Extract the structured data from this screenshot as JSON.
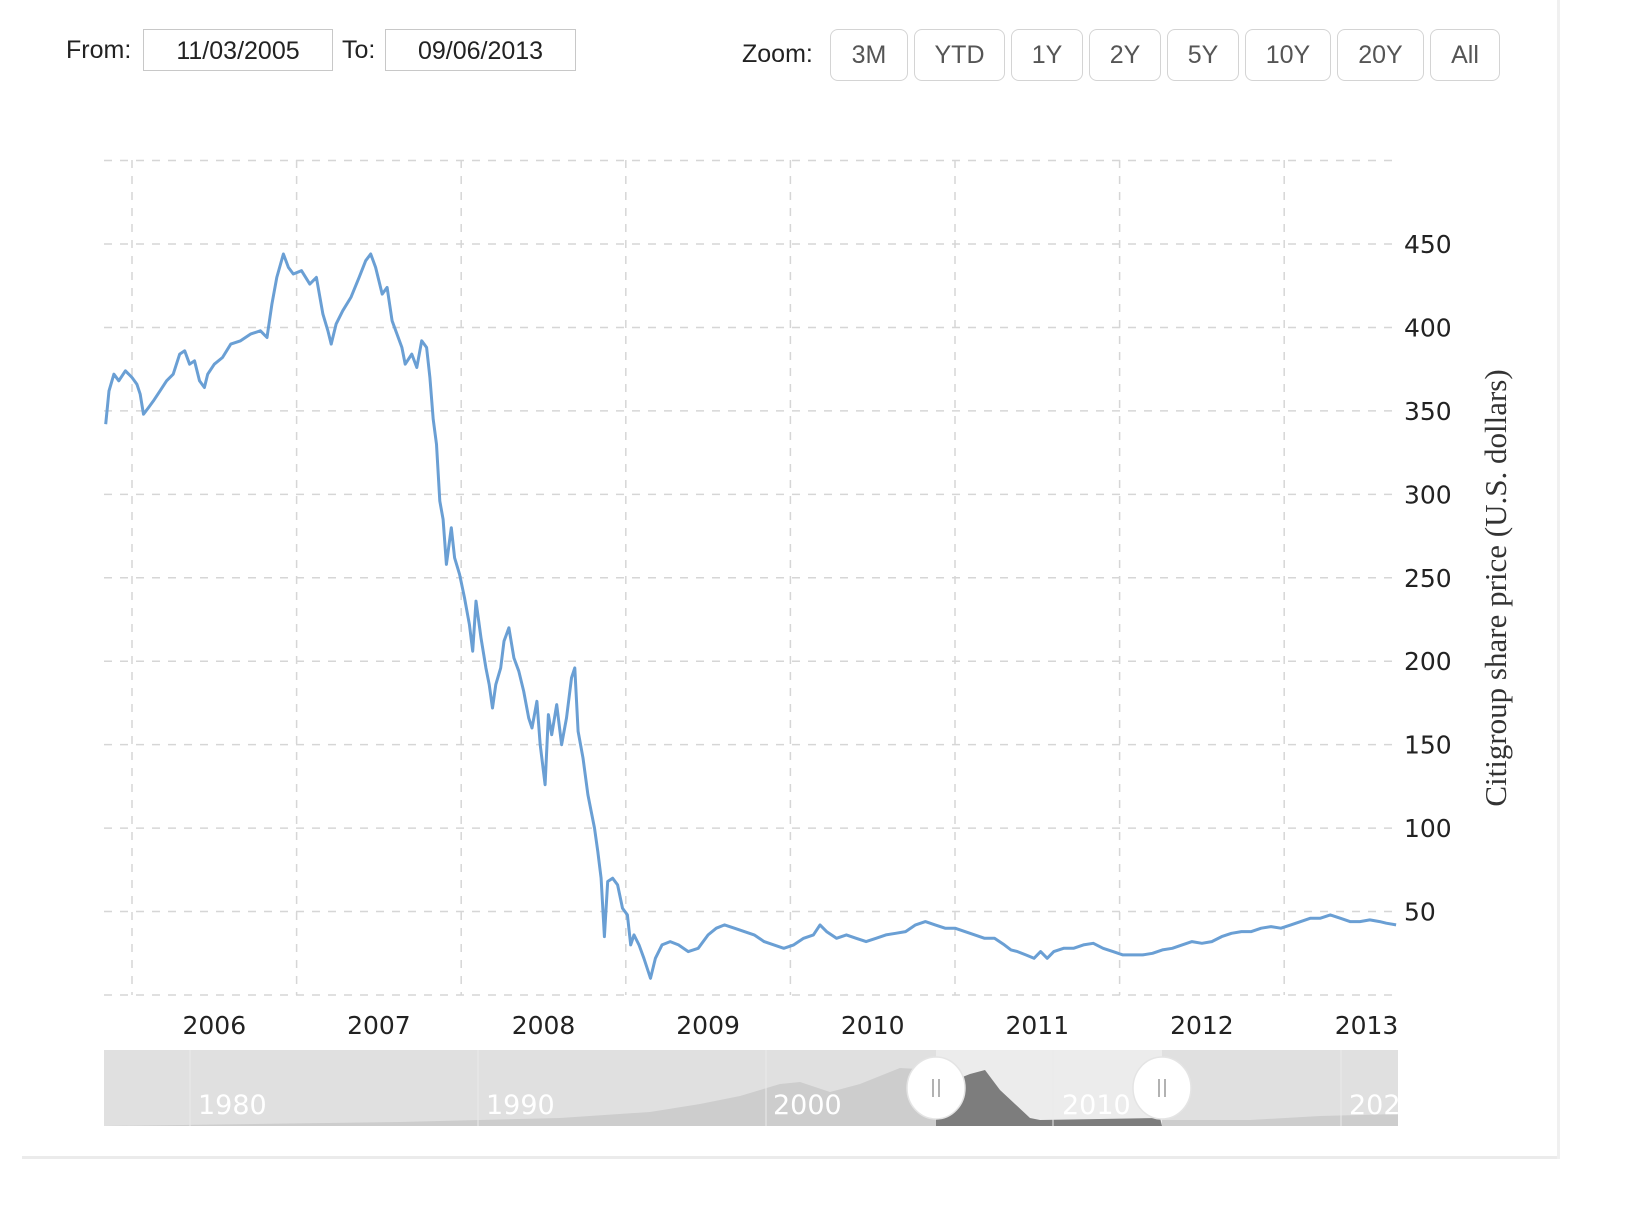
{
  "range_selector": {
    "from_label": "From:",
    "from_value": "11/03/2005",
    "to_label": "To:",
    "to_value": "09/06/2013",
    "zoom_label": "Zoom:",
    "zoom_buttons": [
      "3M",
      "YTD",
      "1Y",
      "2Y",
      "5Y",
      "10Y",
      "20Y",
      "All"
    ]
  },
  "navigator": {
    "labels": [
      "1980",
      "1990",
      "2000",
      "2010",
      "202"
    ],
    "handle_left_icon": "drag-handle-icon",
    "handle_right_icon": "drag-handle-icon"
  },
  "colors": {
    "series": "#6a9fd4",
    "grid": "#d6d6d6",
    "navigator_bg": "#e0e0e0",
    "navigator_area": "#cfcfcf",
    "navigator_selected_area": "#7a7a7a"
  },
  "chart_data": {
    "type": "line",
    "title": "",
    "xlabel": "",
    "ylabel": "Citigroup share price (U.S. dollars)",
    "ylim": [
      0,
      500
    ],
    "yticks": [
      50,
      100,
      150,
      200,
      250,
      300,
      350,
      400,
      450
    ],
    "xticks": [
      "2006",
      "2007",
      "2008",
      "2009",
      "2010",
      "2011",
      "2012",
      "2013"
    ],
    "grid": true,
    "grid_style": "dashed",
    "y_axis_position": "right",
    "legend": null,
    "x_range": [
      "2005-11-03",
      "2013-09-06"
    ],
    "series": [
      {
        "name": "Citigroup share price",
        "x_unit": "year_fraction",
        "points": [
          [
            2005.84,
            342
          ],
          [
            2005.86,
            362
          ],
          [
            2005.89,
            372
          ],
          [
            2005.92,
            368
          ],
          [
            2005.96,
            374
          ],
          [
            2006.0,
            370
          ],
          [
            2006.03,
            366
          ],
          [
            2006.05,
            360
          ],
          [
            2006.07,
            348
          ],
          [
            2006.1,
            352
          ],
          [
            2006.13,
            356
          ],
          [
            2006.17,
            362
          ],
          [
            2006.21,
            368
          ],
          [
            2006.25,
            372
          ],
          [
            2006.29,
            384
          ],
          [
            2006.32,
            386
          ],
          [
            2006.35,
            378
          ],
          [
            2006.38,
            380
          ],
          [
            2006.41,
            368
          ],
          [
            2006.44,
            364
          ],
          [
            2006.46,
            372
          ],
          [
            2006.5,
            378
          ],
          [
            2006.55,
            382
          ],
          [
            2006.6,
            390
          ],
          [
            2006.66,
            392
          ],
          [
            2006.72,
            396
          ],
          [
            2006.78,
            398
          ],
          [
            2006.82,
            394
          ],
          [
            2006.85,
            414
          ],
          [
            2006.88,
            430
          ],
          [
            2006.92,
            444
          ],
          [
            2006.95,
            436
          ],
          [
            2006.98,
            432
          ],
          [
            2007.03,
            434
          ],
          [
            2007.08,
            426
          ],
          [
            2007.12,
            430
          ],
          [
            2007.16,
            408
          ],
          [
            2007.19,
            398
          ],
          [
            2007.21,
            390
          ],
          [
            2007.24,
            402
          ],
          [
            2007.28,
            410
          ],
          [
            2007.33,
            418
          ],
          [
            2007.38,
            430
          ],
          [
            2007.42,
            440
          ],
          [
            2007.45,
            444
          ],
          [
            2007.48,
            436
          ],
          [
            2007.52,
            420
          ],
          [
            2007.55,
            424
          ],
          [
            2007.58,
            404
          ],
          [
            2007.61,
            396
          ],
          [
            2007.64,
            388
          ],
          [
            2007.66,
            378
          ],
          [
            2007.7,
            384
          ],
          [
            2007.73,
            376
          ],
          [
            2007.76,
            392
          ],
          [
            2007.79,
            388
          ],
          [
            2007.81,
            370
          ],
          [
            2007.83,
            345
          ],
          [
            2007.85,
            330
          ],
          [
            2007.87,
            296
          ],
          [
            2007.89,
            285
          ],
          [
            2007.91,
            258
          ],
          [
            2007.94,
            280
          ],
          [
            2007.96,
            262
          ],
          [
            2007.99,
            252
          ],
          [
            2008.02,
            238
          ],
          [
            2008.05,
            222
          ],
          [
            2008.07,
            206
          ],
          [
            2008.09,
            236
          ],
          [
            2008.12,
            214
          ],
          [
            2008.15,
            196
          ],
          [
            2008.17,
            186
          ],
          [
            2008.19,
            172
          ],
          [
            2008.21,
            186
          ],
          [
            2008.24,
            196
          ],
          [
            2008.26,
            212
          ],
          [
            2008.29,
            220
          ],
          [
            2008.32,
            202
          ],
          [
            2008.35,
            194
          ],
          [
            2008.38,
            182
          ],
          [
            2008.41,
            166
          ],
          [
            2008.43,
            160
          ],
          [
            2008.46,
            176
          ],
          [
            2008.48,
            150
          ],
          [
            2008.51,
            126
          ],
          [
            2008.53,
            168
          ],
          [
            2008.55,
            156
          ],
          [
            2008.58,
            174
          ],
          [
            2008.61,
            150
          ],
          [
            2008.64,
            166
          ],
          [
            2008.67,
            190
          ],
          [
            2008.69,
            196
          ],
          [
            2008.71,
            158
          ],
          [
            2008.74,
            142
          ],
          [
            2008.77,
            120
          ],
          [
            2008.79,
            110
          ],
          [
            2008.81,
            100
          ],
          [
            2008.83,
            86
          ],
          [
            2008.85,
            70
          ],
          [
            2008.87,
            35
          ],
          [
            2008.89,
            68
          ],
          [
            2008.92,
            70
          ],
          [
            2008.95,
            66
          ],
          [
            2008.98,
            52
          ],
          [
            2009.01,
            48
          ],
          [
            2009.03,
            30
          ],
          [
            2009.05,
            36
          ],
          [
            2009.08,
            30
          ],
          [
            2009.11,
            22
          ],
          [
            2009.15,
            10
          ],
          [
            2009.18,
            22
          ],
          [
            2009.22,
            30
          ],
          [
            2009.27,
            32
          ],
          [
            2009.32,
            30
          ],
          [
            2009.38,
            26
          ],
          [
            2009.44,
            28
          ],
          [
            2009.5,
            36
          ],
          [
            2009.55,
            40
          ],
          [
            2009.6,
            42
          ],
          [
            2009.66,
            40
          ],
          [
            2009.72,
            38
          ],
          [
            2009.78,
            36
          ],
          [
            2009.84,
            32
          ],
          [
            2009.9,
            30
          ],
          [
            2009.96,
            28
          ],
          [
            2010.02,
            30
          ],
          [
            2010.08,
            34
          ],
          [
            2010.14,
            36
          ],
          [
            2010.18,
            42
          ],
          [
            2010.22,
            38
          ],
          [
            2010.28,
            34
          ],
          [
            2010.34,
            36
          ],
          [
            2010.4,
            34
          ],
          [
            2010.46,
            32
          ],
          [
            2010.52,
            34
          ],
          [
            2010.58,
            36
          ],
          [
            2010.64,
            37
          ],
          [
            2010.7,
            38
          ],
          [
            2010.76,
            42
          ],
          [
            2010.82,
            44
          ],
          [
            2010.88,
            42
          ],
          [
            2010.94,
            40
          ],
          [
            2011.0,
            40
          ],
          [
            2011.06,
            38
          ],
          [
            2011.12,
            36
          ],
          [
            2011.18,
            34
          ],
          [
            2011.24,
            34
          ],
          [
            2011.3,
            30
          ],
          [
            2011.34,
            27
          ],
          [
            2011.38,
            26
          ],
          [
            2011.43,
            24
          ],
          [
            2011.48,
            22
          ],
          [
            2011.52,
            26
          ],
          [
            2011.56,
            22
          ],
          [
            2011.6,
            26
          ],
          [
            2011.66,
            28
          ],
          [
            2011.72,
            28
          ],
          [
            2011.78,
            30
          ],
          [
            2011.84,
            31
          ],
          [
            2011.9,
            28
          ],
          [
            2011.96,
            26
          ],
          [
            2012.02,
            24
          ],
          [
            2012.08,
            24
          ],
          [
            2012.14,
            24
          ],
          [
            2012.2,
            25
          ],
          [
            2012.26,
            27
          ],
          [
            2012.32,
            28
          ],
          [
            2012.38,
            30
          ],
          [
            2012.44,
            32
          ],
          [
            2012.5,
            31
          ],
          [
            2012.56,
            32
          ],
          [
            2012.62,
            35
          ],
          [
            2012.68,
            37
          ],
          [
            2012.74,
            38
          ],
          [
            2012.8,
            38
          ],
          [
            2012.86,
            40
          ],
          [
            2012.92,
            41
          ],
          [
            2012.98,
            40
          ],
          [
            2013.04,
            42
          ],
          [
            2013.1,
            44
          ],
          [
            2013.16,
            46
          ],
          [
            2013.22,
            46
          ],
          [
            2013.28,
            48
          ],
          [
            2013.34,
            46
          ],
          [
            2013.4,
            44
          ],
          [
            2013.46,
            44
          ],
          [
            2013.52,
            45
          ],
          [
            2013.58,
            44
          ],
          [
            2013.62,
            43
          ],
          [
            2013.68,
            42
          ]
        ]
      }
    ]
  }
}
